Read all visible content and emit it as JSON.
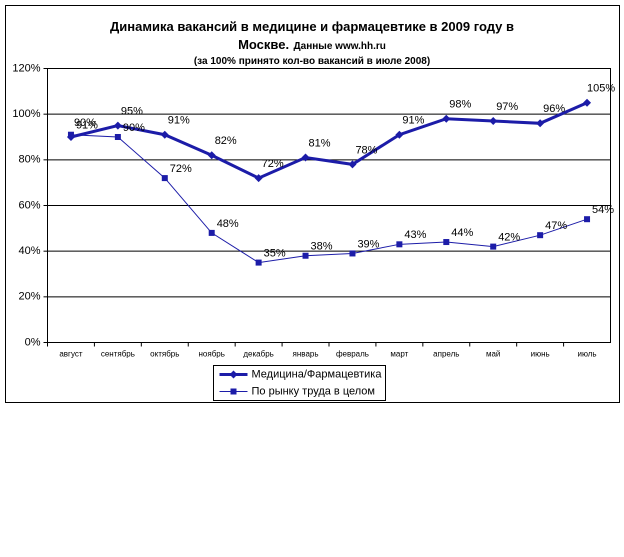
{
  "chart_data": {
    "type": "line",
    "title": "Динамика вакансий в медицине и фармацевтике в 2009 году в Москве.",
    "source": "Данные www.hh.ru",
    "subtitle": "(за 100% принято кол-во вакансий в июле 2008)",
    "categories": [
      "август",
      "сентябрь",
      "октябрь",
      "ноябрь",
      "декабрь",
      "январь",
      "февраль",
      "март",
      "апрель",
      "май",
      "июнь",
      "июль"
    ],
    "series": [
      {
        "name": "Медицина/Фармацевтика",
        "color": "#1c1ca8",
        "marker": "diamond",
        "line_width": 3,
        "values": [
          90,
          95,
          91,
          82,
          72,
          81,
          78,
          91,
          98,
          97,
          96,
          105
        ],
        "value_labels": [
          "90%",
          "95%",
          "91%",
          "82%",
          "72%",
          "81%",
          "78%",
          "91%",
          "98%",
          "97%",
          "96%",
          "105%"
        ]
      },
      {
        "name": "По рынку труда в целом",
        "color": "#1c1ca8",
        "marker": "square",
        "line_width": 1,
        "values": [
          91,
          90,
          72,
          48,
          35,
          38,
          39,
          43,
          44,
          42,
          47,
          54
        ],
        "value_labels": [
          "91%",
          "90%",
          "72%",
          "48%",
          "35%",
          "38%",
          "39%",
          "43%",
          "44%",
          "42%",
          "47%",
          "54%"
        ]
      }
    ],
    "ylim": [
      0,
      120
    ],
    "yticks": [
      {
        "value": 0,
        "label": "0%"
      },
      {
        "value": 20,
        "label": "20%"
      },
      {
        "value": 40,
        "label": "40%"
      },
      {
        "value": 60,
        "label": "60%"
      },
      {
        "value": 80,
        "label": "80%"
      },
      {
        "value": 100,
        "label": "100%"
      },
      {
        "value": 120,
        "label": "120%"
      }
    ],
    "grid": true,
    "legend": "bottom"
  }
}
